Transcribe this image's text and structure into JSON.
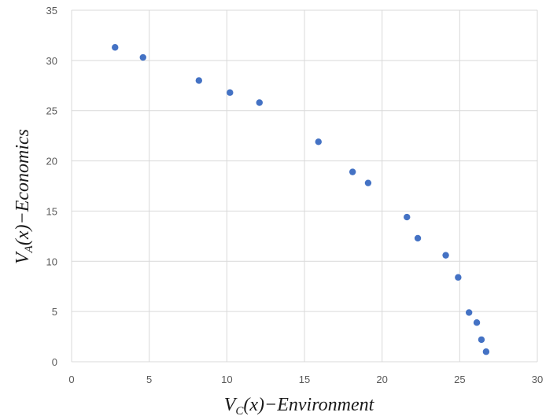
{
  "chart_data": {
    "type": "scatter",
    "xlabel": {
      "main": "V",
      "sub": "C",
      "rest": "(x)−Environment"
    },
    "ylabel": {
      "main": "V",
      "sub": "A",
      "rest": "(x)−Economics"
    },
    "xlim": [
      0,
      30
    ],
    "ylim": [
      0,
      35
    ],
    "xticks": [
      "0",
      "5",
      "10",
      "15",
      "20",
      "25",
      "30"
    ],
    "yticks": [
      "0",
      "5",
      "10",
      "15",
      "20",
      "25",
      "30",
      "35"
    ],
    "grid": true,
    "marker_color": "#4472C4",
    "series": [
      {
        "points": [
          [
            2.8,
            31.3
          ],
          [
            4.6,
            30.3
          ],
          [
            8.2,
            28.0
          ],
          [
            10.2,
            26.8
          ],
          [
            12.1,
            25.8
          ],
          [
            15.9,
            21.9
          ],
          [
            18.1,
            18.9
          ],
          [
            19.1,
            17.8
          ],
          [
            21.6,
            14.4
          ],
          [
            22.3,
            12.3
          ],
          [
            24.1,
            10.6
          ],
          [
            24.9,
            8.4
          ],
          [
            25.6,
            4.9
          ],
          [
            26.1,
            3.9
          ],
          [
            26.4,
            2.2
          ],
          [
            26.7,
            1.0
          ]
        ]
      }
    ]
  }
}
